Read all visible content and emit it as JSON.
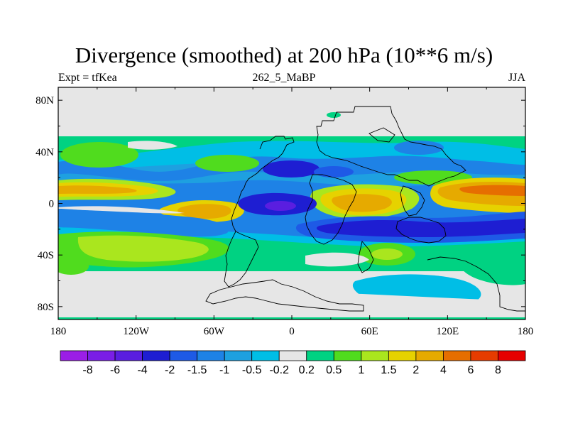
{
  "title": "Divergence (smoothed) at 200 hPa (10**6 m/s)",
  "subtitle_left": "Expt = tfKea",
  "subtitle_center": "262_5_MaBP",
  "subtitle_right": "JJA",
  "lat_labels": [
    "80N",
    "40N",
    "0",
    "40S",
    "80S"
  ],
  "lon_labels": [
    "180",
    "120W",
    "60W",
    "0",
    "60E",
    "120E",
    "180"
  ],
  "colorbar": {
    "labels": [
      "-8",
      "-6",
      "-4",
      "-2",
      "-1.5",
      "-1",
      "-0.5",
      "-0.2",
      "0.2",
      "0.5",
      "1",
      "1.5",
      "2",
      "4",
      "6",
      "8"
    ],
    "colors": [
      "#9b1ee6",
      "#7a1ee6",
      "#5a1ee0",
      "#1e1ed2",
      "#1e5ae6",
      "#1e82e6",
      "#1ea0e0",
      "#00bee6",
      "#e6e6e6",
      "#00d282",
      "#50dc1e",
      "#aae61e",
      "#e6d200",
      "#e6aa00",
      "#e66e00",
      "#e63c00",
      "#e60000"
    ]
  },
  "palette": {
    "land_sea_bg": "#e6e6e6",
    "strong_neg": "#1e1ed2",
    "mid_neg": "#1e82e6",
    "weak_neg": "#00bee6",
    "weak_pos": "#00d282",
    "mid_pos": "#50dc1e",
    "pos_yellowgreen": "#aae61e",
    "pos_yellow": "#e6d200",
    "pos_orange": "#e6aa00",
    "pos_darkorange": "#e66e00",
    "pos_red": "#e63c00"
  }
}
